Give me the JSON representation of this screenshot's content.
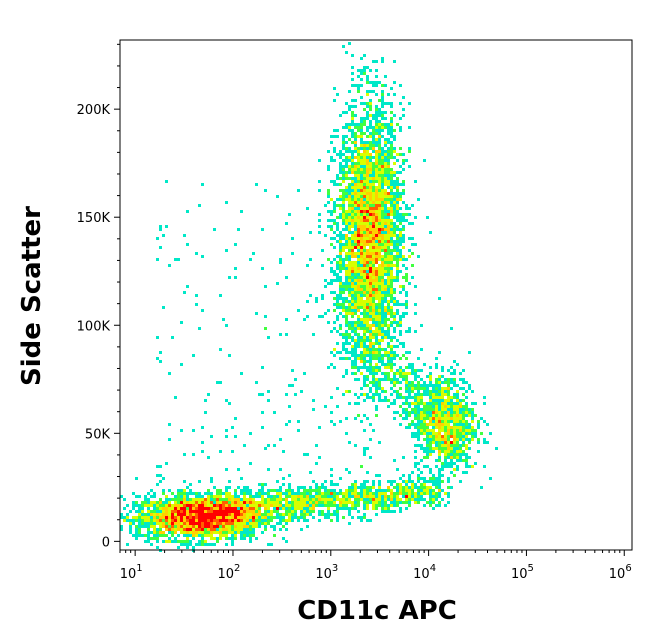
{
  "chart_data": {
    "type": "scatter",
    "subtype": "flow-cytometry-density-dot-plot",
    "title": "",
    "xlabel": "CD11c APC",
    "ylabel": "Side Scatter",
    "x_scale": "log",
    "xlim": [
      7,
      1200000
    ],
    "ylim": [
      -4000,
      232000
    ],
    "x_ticks": [
      {
        "base": "10",
        "exp": "1",
        "value": 10
      },
      {
        "base": "10",
        "exp": "2",
        "value": 100
      },
      {
        "base": "10",
        "exp": "3",
        "value": 1000
      },
      {
        "base": "10",
        "exp": "4",
        "value": 10000
      },
      {
        "base": "10",
        "exp": "5",
        "value": 100000
      },
      {
        "base": "10",
        "exp": "6",
        "value": 1000000
      }
    ],
    "y_ticks": [
      {
        "label": "0",
        "value": 0
      },
      {
        "label": "50K",
        "value": 50000
      },
      {
        "label": "100K",
        "value": 100000
      },
      {
        "label": "150K",
        "value": 150000
      },
      {
        "label": "200K",
        "value": 200000
      }
    ],
    "grid": false,
    "colormap": [
      "#0000ff",
      "#00a0ff",
      "#00e8c8",
      "#40ff40",
      "#d8ff00",
      "#ffd000",
      "#ff6000",
      "#ff0000"
    ],
    "populations": [
      {
        "x_center": 45,
        "y_center": 11000,
        "x_spread_decades": 0.32,
        "y_spread": 5000,
        "events": 2600
      },
      {
        "x_center": 2500,
        "y_center": 140000,
        "x_spread_decades": 0.17,
        "y_spread": 30000,
        "events": 4200
      },
      {
        "x_center": 15000,
        "y_center": 55000,
        "x_spread_decades": 0.16,
        "y_spread": 12000,
        "events": 900
      }
    ]
  }
}
